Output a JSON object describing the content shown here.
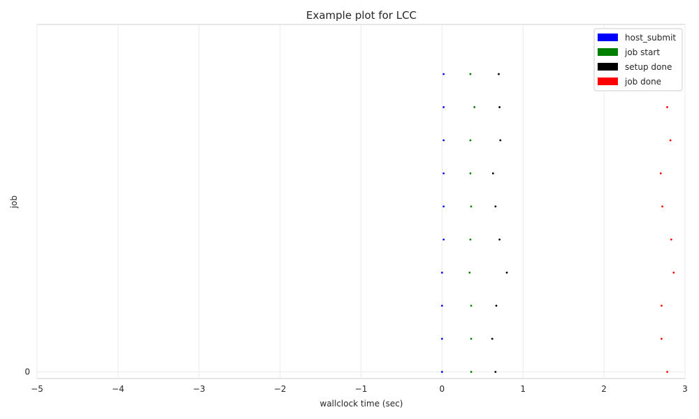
{
  "chart_data": {
    "type": "scatter",
    "title": "Example plot for LCC",
    "xlabel": "wallclock time (sec)",
    "ylabel": "job",
    "xlim": [
      -5,
      3
    ],
    "ylim": [
      -0.2,
      10.5
    ],
    "x_ticks": [
      -5,
      -4,
      -3,
      -2,
      -1,
      0,
      1,
      2,
      3
    ],
    "x_tick_labels": [
      "−5",
      "−4",
      "−3",
      "−2",
      "−1",
      "0",
      "1",
      "2",
      "3"
    ],
    "y_ticks": [
      0
    ],
    "y_tick_labels": [
      "0"
    ],
    "grid": true,
    "legend_position": "top-right",
    "series": [
      {
        "name": "host_submit",
        "color": "#0000ff",
        "points": [
          {
            "x": 0.0,
            "y": 0
          },
          {
            "x": 0.0,
            "y": 1
          },
          {
            "x": 0.0,
            "y": 2
          },
          {
            "x": 0.0,
            "y": 3
          },
          {
            "x": 0.02,
            "y": 4
          },
          {
            "x": 0.02,
            "y": 5
          },
          {
            "x": 0.02,
            "y": 6
          },
          {
            "x": 0.02,
            "y": 7
          },
          {
            "x": 0.02,
            "y": 8
          },
          {
            "x": 0.02,
            "y": 9
          }
        ]
      },
      {
        "name": "job start",
        "color": "#008000",
        "points": [
          {
            "x": 0.36,
            "y": 0
          },
          {
            "x": 0.36,
            "y": 1
          },
          {
            "x": 0.36,
            "y": 2
          },
          {
            "x": 0.34,
            "y": 3
          },
          {
            "x": 0.35,
            "y": 4
          },
          {
            "x": 0.36,
            "y": 5
          },
          {
            "x": 0.35,
            "y": 6
          },
          {
            "x": 0.35,
            "y": 7
          },
          {
            "x": 0.4,
            "y": 8
          },
          {
            "x": 0.35,
            "y": 9
          }
        ]
      },
      {
        "name": "setup done",
        "color": "#000000",
        "points": [
          {
            "x": 0.66,
            "y": 0
          },
          {
            "x": 0.62,
            "y": 1
          },
          {
            "x": 0.67,
            "y": 2
          },
          {
            "x": 0.8,
            "y": 3
          },
          {
            "x": 0.71,
            "y": 4
          },
          {
            "x": 0.66,
            "y": 5
          },
          {
            "x": 0.63,
            "y": 6
          },
          {
            "x": 0.72,
            "y": 7
          },
          {
            "x": 0.71,
            "y": 8
          },
          {
            "x": 0.7,
            "y": 9
          }
        ]
      },
      {
        "name": "job done",
        "color": "#ff0000",
        "points": [
          {
            "x": 2.78,
            "y": 0
          },
          {
            "x": 2.71,
            "y": 1
          },
          {
            "x": 2.71,
            "y": 2
          },
          {
            "x": 2.86,
            "y": 3
          },
          {
            "x": 2.83,
            "y": 4
          },
          {
            "x": 2.72,
            "y": 5
          },
          {
            "x": 2.7,
            "y": 6
          },
          {
            "x": 2.82,
            "y": 7
          },
          {
            "x": 2.78,
            "y": 8
          },
          {
            "x": 2.8,
            "y": 9
          }
        ]
      }
    ]
  }
}
